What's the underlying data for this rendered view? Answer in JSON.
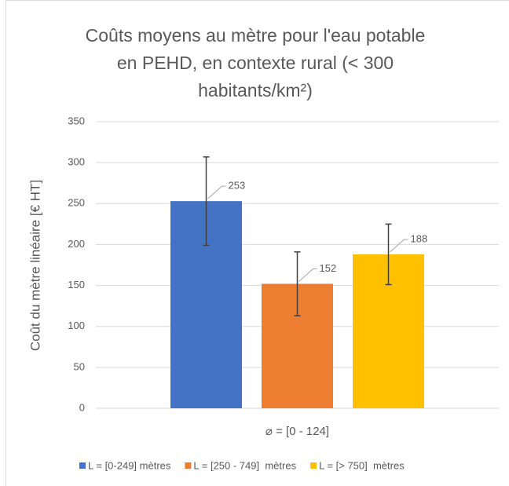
{
  "chart_data": {
    "type": "bar",
    "title": "Coûts moyens au mètre pour l'eau potable en PEHD, en contexte rural (< 300 habitants/km²)",
    "y_label": "Coût du mètre linéaire [€ HT]",
    "categories": [
      "⌀ = [0 - 124]"
    ],
    "series": [
      {
        "name": "L = [0-249] mètres",
        "color": "#4472c4",
        "values": [
          253
        ],
        "errors": [
          54
        ]
      },
      {
        "name": "L = [250 - 749]  mètres",
        "color": "#ed7d31",
        "values": [
          152
        ],
        "errors": [
          39
        ]
      },
      {
        "name": "L = [> 750]  mètres",
        "color": "#ffc000",
        "values": [
          188
        ],
        "errors": [
          37
        ]
      }
    ],
    "ylim": [
      0,
      350
    ],
    "yticks": [
      0,
      50,
      100,
      150,
      200,
      250,
      300,
      350
    ],
    "grid": true,
    "legend": "bottom"
  }
}
